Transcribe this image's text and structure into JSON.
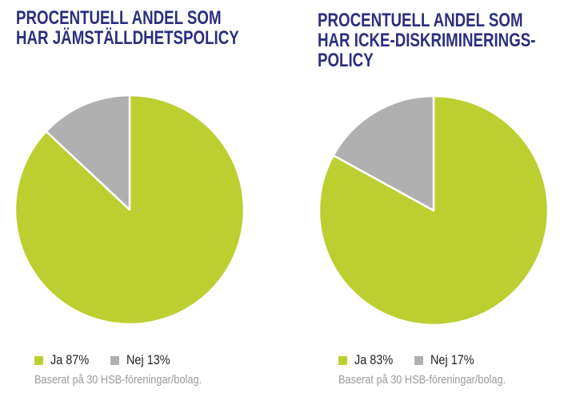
{
  "colors": {
    "title": "#2b2f7e",
    "ja": "#bccf30",
    "nej": "#b0b0b0"
  },
  "chart_data": [
    {
      "type": "pie",
      "title_lines": [
        "PROCENTUELL ANDEL SOM",
        "HAR JÄMSTÄLLDHETSPOLICY"
      ],
      "slices": [
        {
          "label": "Ja",
          "value": 87,
          "legend": "Ja 87%",
          "color": "#bccf30"
        },
        {
          "label": "Nej",
          "value": 13,
          "legend": "Nej 13%",
          "color": "#b0b0b0"
        }
      ],
      "start": "top",
      "direction": "clockwise",
      "legend_placement": "bottom-left",
      "note": "Baserat på 30 HSB-föreningar/bolag."
    },
    {
      "type": "pie",
      "title_lines": [
        "PROCENTUELL ANDEL SOM",
        "HAR ICKE-DISKRIMINERINGS-",
        "POLICY"
      ],
      "slices": [
        {
          "label": "Ja",
          "value": 83,
          "legend": "Ja 83%",
          "color": "#bccf30"
        },
        {
          "label": "Nej",
          "value": 17,
          "legend": "Nej 17%",
          "color": "#b0b0b0"
        }
      ],
      "start": "top",
      "direction": "clockwise",
      "legend_placement": "bottom-left",
      "note": "Baserat på 30 HSB-föreningar/bolag."
    }
  ]
}
